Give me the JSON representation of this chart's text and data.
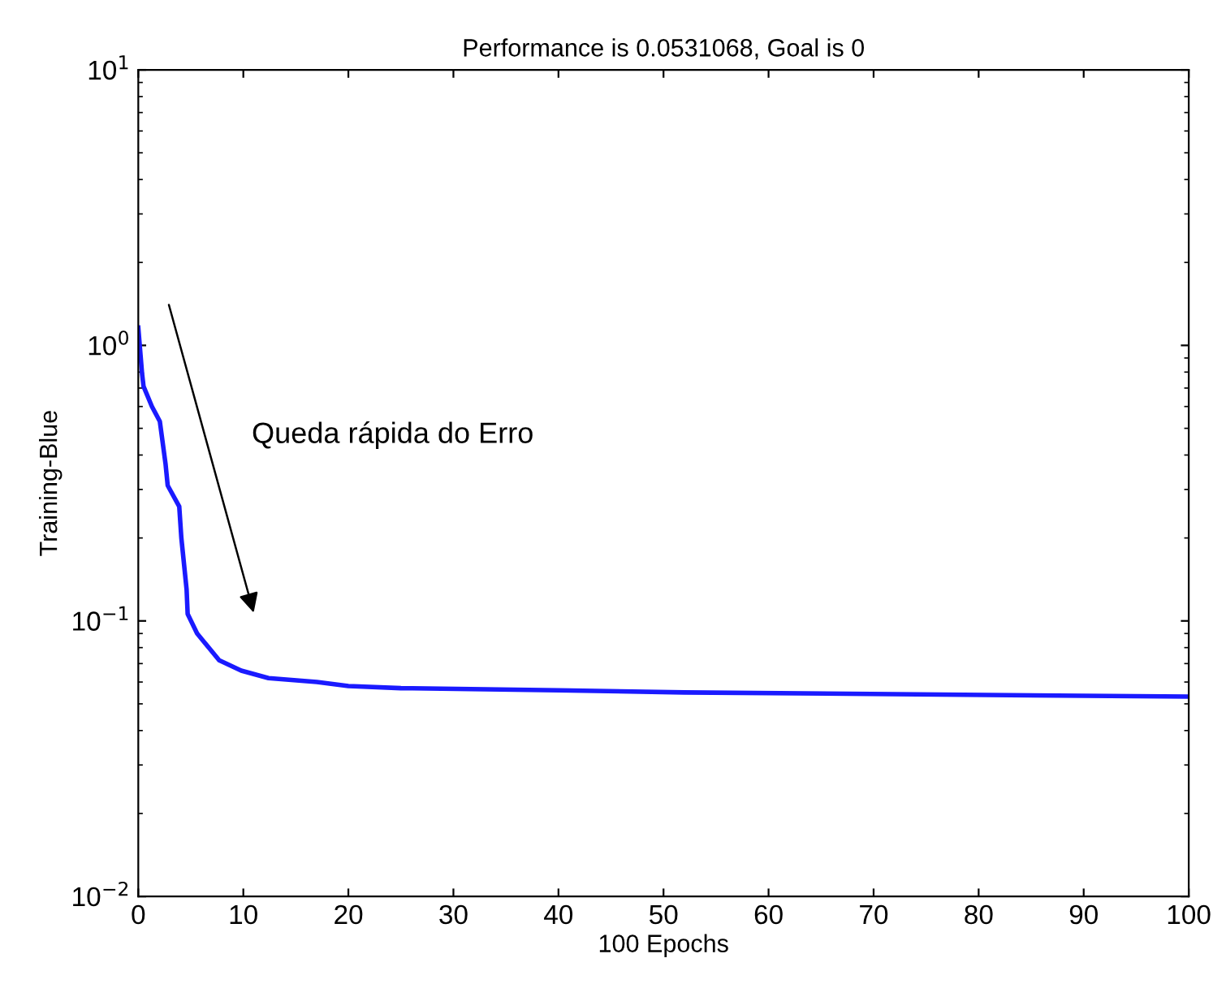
{
  "chart_data": {
    "type": "line",
    "title": "Performance is 0.0531068, Goal is 0",
    "xlabel": "100 Epochs",
    "ylabel": "Training-Blue",
    "annotations": [
      "Queda rápida do Erro"
    ],
    "x": [
      0,
      0.36,
      0.5,
      1.3,
      2.05,
      2.6,
      2.8,
      3.9,
      4.1,
      4.6,
      4.7,
      5.6,
      7.7,
      9.8,
      12.4,
      17,
      20,
      25,
      40,
      52,
      100
    ],
    "series": [
      {
        "color": "#1a1aff",
        "values": [
          1.16,
          0.79,
          0.71,
          0.6,
          0.53,
          0.37,
          0.31,
          0.26,
          0.2,
          0.13,
          0.106,
          0.09,
          0.072,
          0.066,
          0.062,
          0.06,
          0.058,
          0.057,
          0.056,
          0.055,
          0.0531
        ]
      }
    ],
    "log": "y",
    "xlim": [
      0,
      100
    ],
    "ylim": [
      0.01,
      10
    ],
    "xticks": [
      0,
      10,
      20,
      30,
      40,
      50,
      60,
      70,
      80,
      90,
      100
    ],
    "yticks": [
      {
        "value": 0.01,
        "label": "10$^{−2}$"
      },
      {
        "value": 0.1,
        "label": "10$^{−1}$"
      },
      {
        "value": 1,
        "label": "10$^{0}$"
      },
      {
        "value": 10,
        "label": "10$^{1}$"
      }
    ],
    "grid": false,
    "legend": false,
    "marker": "none",
    "line_style": "solid"
  }
}
